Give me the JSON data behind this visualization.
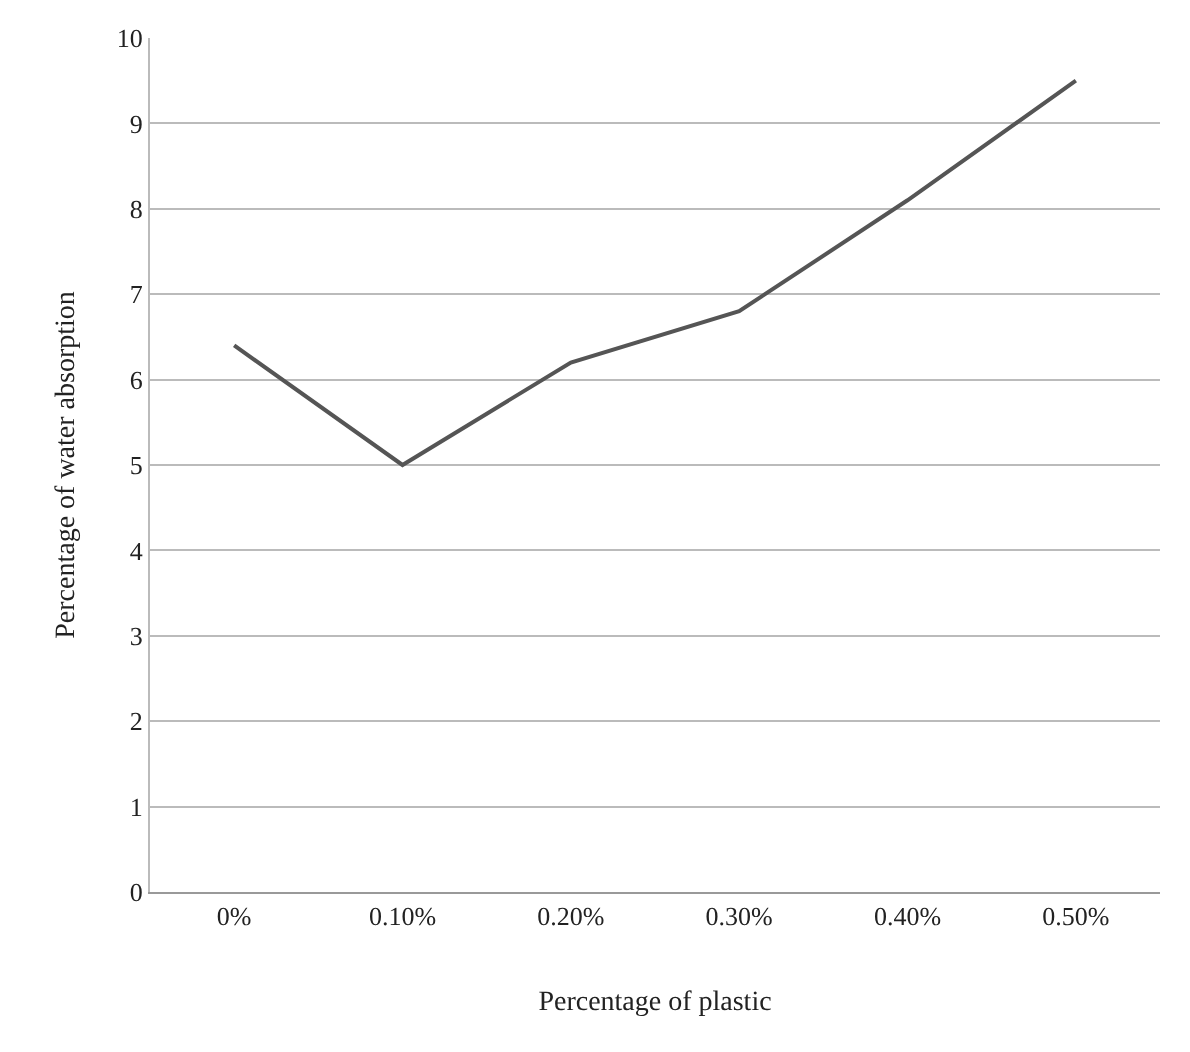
{
  "chart_data": {
    "type": "line",
    "xlabel": "Percentage of plastic",
    "ylabel": "Percentage of water absorption",
    "categories": [
      "0%",
      "0.10%",
      "0.20%",
      "0.30%",
      "0.40%",
      "0.50%"
    ],
    "series": [
      {
        "color": "#555555",
        "values": [
          6.4,
          5.0,
          6.2,
          6.8,
          8.1,
          9.5
        ]
      }
    ],
    "ylim": [
      0,
      10
    ],
    "yticks": [
      0,
      1,
      2,
      3,
      4,
      5,
      6,
      7,
      8,
      9,
      10
    ],
    "grid": "y",
    "legend": false,
    "marker": "none",
    "line_style": "solid"
  }
}
